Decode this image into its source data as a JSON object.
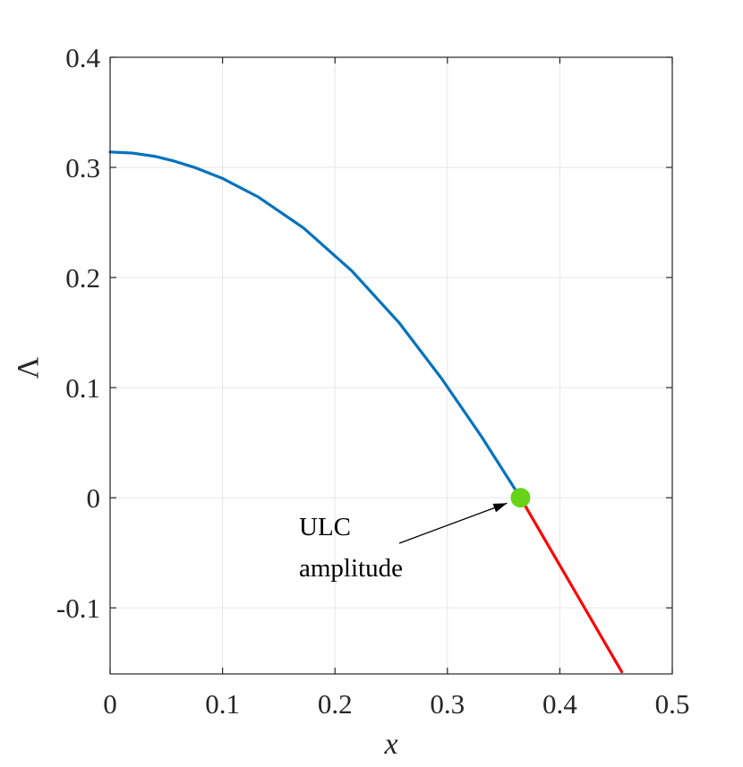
{
  "chart_data": {
    "type": "line",
    "xlabel": "x",
    "ylabel": "Λ",
    "xlim": [
      0,
      0.5
    ],
    "ylim": [
      -0.16,
      0.4
    ],
    "x_ticks": [
      "0",
      "0.1",
      "0.2",
      "0.3",
      "0.4",
      "0.5"
    ],
    "y_ticks": [
      "0.4",
      "0.3",
      "0.2",
      "0.1",
      "0",
      "-0.1"
    ],
    "grid": true,
    "series": [
      {
        "color": "#0072BD",
        "x": [
          0,
          0.02,
          0.04,
          0.056,
          0.075,
          0.1,
          0.132,
          0.172,
          0.215,
          0.257,
          0.295,
          0.33,
          0.365
        ],
        "y": [
          0.314,
          0.313,
          0.31,
          0.306,
          0.3,
          0.29,
          0.273,
          0.245,
          0.206,
          0.159,
          0.108,
          0.056,
          0.0
        ]
      },
      {
        "color": "#FF0000",
        "x": [
          0.365,
          0.455
        ],
        "y": [
          0.0,
          -0.158
        ]
      }
    ],
    "point": {
      "x": 0.365,
      "y": 0.0,
      "color": "#66D319"
    },
    "annotation": {
      "lines": [
        "ULC",
        "amplitude"
      ],
      "arrow_target_x": 0.353,
      "arrow_target_y": -0.005
    }
  }
}
